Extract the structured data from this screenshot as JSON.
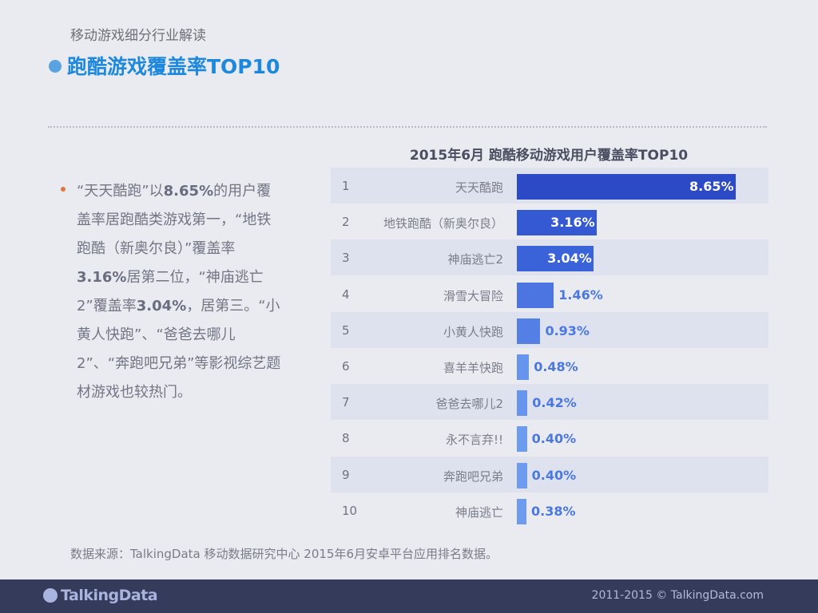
{
  "header": {
    "subtitle": "移动游戏细分行业解读",
    "title": "跑酷游戏覆盖率TOP10"
  },
  "body_text": {
    "parts": [
      "“天天酷跑”以",
      "8.65%",
      "的用户覆盖率居跑酷类游戏第一，“地铁跑酷（新奥尔良）”覆盖率",
      "3.16%",
      "居第二位，“神庙逃亡2”覆盖率",
      "3.04%",
      "，居第三。“小黄人快跑”、“爸爸去哪儿2”、“奔跑吧兄弟”等影视综艺题材游戏也较热门。"
    ]
  },
  "chart_data": {
    "type": "bar",
    "orientation": "horizontal",
    "title": "2015年6月 跑酷移动游戏用户覆盖率TOP10",
    "ranks": [
      "1",
      "2",
      "3",
      "4",
      "5",
      "6",
      "7",
      "8",
      "9",
      "10"
    ],
    "categories": [
      "天天酷跑",
      "地铁跑酷（新奥尔良）",
      "神庙逃亡2",
      "滑雪大冒险",
      "小黄人快跑",
      "喜羊羊快跑",
      "爸爸去哪儿2",
      "永不言弃!!",
      "奔跑吧兄弟",
      "神庙逃亡"
    ],
    "values": [
      8.65,
      3.16,
      3.04,
      1.46,
      0.93,
      0.48,
      0.42,
      0.4,
      0.4,
      0.38
    ],
    "labels": [
      "8.65%",
      "3.16%",
      "3.04%",
      "1.46%",
      "0.93%",
      "0.48%",
      "0.42%",
      "0.40%",
      "0.40%",
      "0.38%"
    ],
    "unit": "%",
    "bar_colors": [
      "#2c49c6",
      "#3459d2",
      "#3a63da",
      "#4c75e2",
      "#5480e6",
      "#6794ec",
      "#6794ec",
      "#6d9bee",
      "#6d9bee",
      "#6d9bee"
    ],
    "label_color_outside": "#4a78e0",
    "grid": false
  },
  "footnote": "数据来源：TalkingData 移动数据研究中心 2015年6月安卓平台应用排名数据。",
  "footer": {
    "logo": "TalkingData",
    "copyright": "2011-2015 © TalkingData.com"
  }
}
